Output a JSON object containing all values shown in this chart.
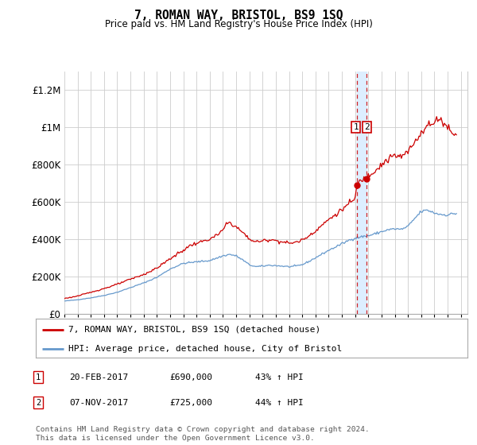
{
  "title": "7, ROMAN WAY, BRISTOL, BS9 1SQ",
  "subtitle": "Price paid vs. HM Land Registry's House Price Index (HPI)",
  "ylabel_ticks": [
    "£0",
    "£200K",
    "£400K",
    "£600K",
    "£800K",
    "£1M",
    "£1.2M"
  ],
  "ytick_values": [
    0,
    200000,
    400000,
    600000,
    800000,
    1000000,
    1200000
  ],
  "ylim": [
    0,
    1300000
  ],
  "xlim_start": 1995.0,
  "xlim_end": 2025.5,
  "legend_line1": "7, ROMAN WAY, BRISTOL, BS9 1SQ (detached house)",
  "legend_line2": "HPI: Average price, detached house, City of Bristol",
  "annotation1_date": "20-FEB-2017",
  "annotation1_price": "£690,000",
  "annotation1_pct": "43% ↑ HPI",
  "annotation2_date": "07-NOV-2017",
  "annotation2_price": "£725,000",
  "annotation2_pct": "44% ↑ HPI",
  "footnote": "Contains HM Land Registry data © Crown copyright and database right 2024.\nThis data is licensed under the Open Government Licence v3.0.",
  "red_color": "#cc0000",
  "blue_color": "#6699cc",
  "highlight_color": "#ddeeff",
  "annotation_box_color": "#cc0000",
  "vline_color": "#cc0000",
  "grid_color": "#cccccc",
  "background_color": "#ffffff",
  "transaction1_x": 2017.122,
  "transaction1_y": 690000,
  "transaction2_x": 2017.836,
  "transaction2_y": 725000
}
